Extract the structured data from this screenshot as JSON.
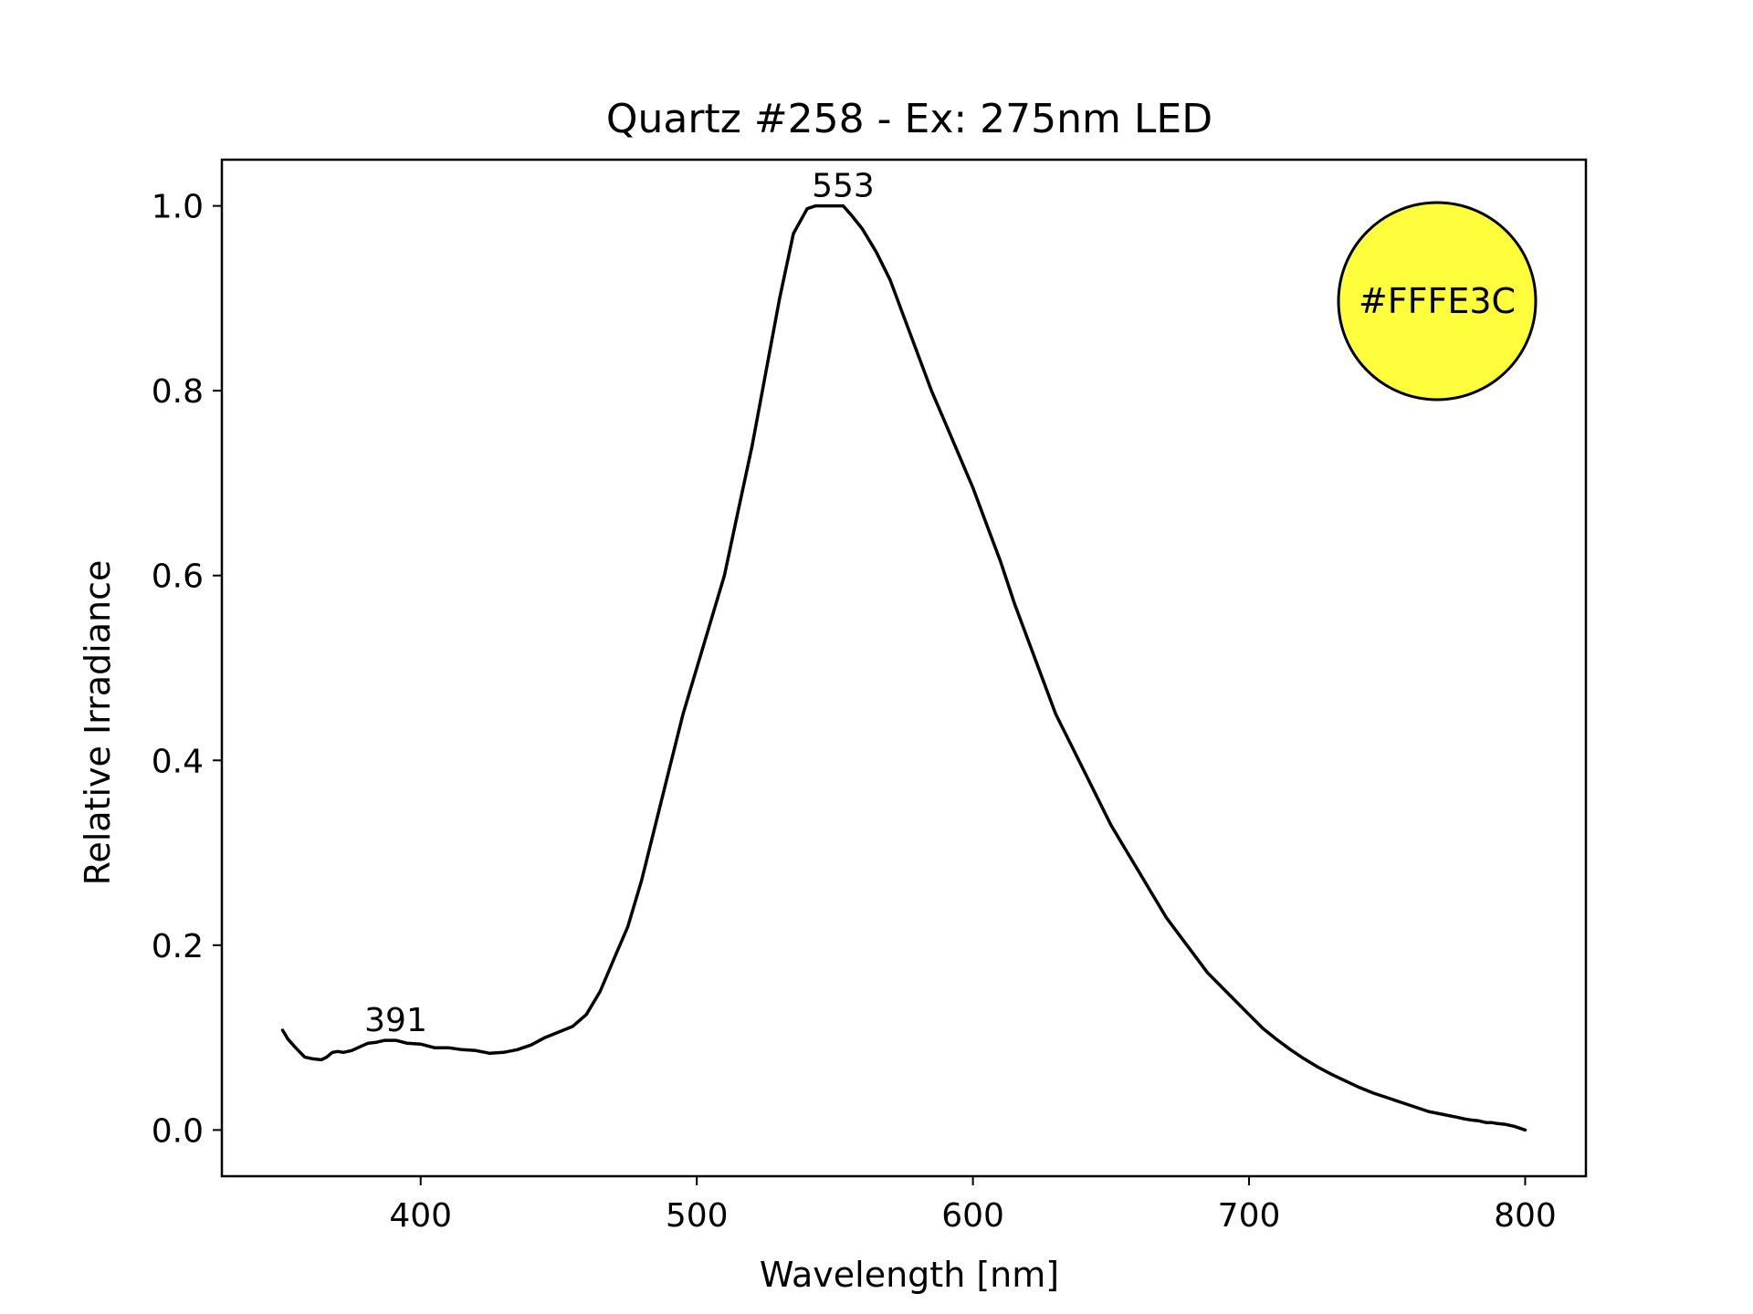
{
  "chart_data": {
    "type": "line",
    "title": "Quartz #258 - Ex: 275nm LED",
    "xlabel": "Wavelength [nm]",
    "ylabel": "Relative Irradiance",
    "xlim": [
      328,
      822
    ],
    "ylim": [
      -0.05,
      1.05
    ],
    "xticks": [
      400,
      500,
      600,
      700,
      800
    ],
    "yticks": [
      0.0,
      0.2,
      0.4,
      0.6,
      0.8,
      1.0
    ],
    "ytick_labels": [
      "0.0",
      "0.2",
      "0.4",
      "0.6",
      "0.8",
      "1.0"
    ],
    "grid": false,
    "line_color": "#000000",
    "series": [
      {
        "x": [
          350,
          352,
          355,
          358,
          361,
          364,
          366,
          368,
          370,
          372,
          375,
          378,
          381,
          384,
          387,
          391,
          395,
          400,
          405,
          410,
          415,
          420,
          425,
          430,
          435,
          440,
          445,
          450,
          455,
          460,
          465,
          470,
          475,
          480,
          485,
          490,
          495,
          500,
          505,
          510,
          515,
          520,
          525,
          530,
          535,
          540,
          543,
          546,
          549,
          553,
          556,
          560,
          565,
          570,
          575,
          580,
          585,
          590,
          595,
          600,
          605,
          610,
          615,
          620,
          625,
          630,
          635,
          640,
          645,
          650,
          655,
          660,
          665,
          670,
          675,
          680,
          685,
          690,
          695,
          700,
          705,
          710,
          715,
          720,
          725,
          730,
          735,
          740,
          745,
          750,
          755,
          760,
          765,
          770,
          775,
          778,
          780,
          783,
          786,
          788,
          790,
          793,
          796,
          800
        ],
        "y": [
          0.108,
          0.098,
          0.088,
          0.079,
          0.077,
          0.076,
          0.079,
          0.084,
          0.085,
          0.084,
          0.086,
          0.09,
          0.094,
          0.095,
          0.097,
          0.097,
          0.094,
          0.093,
          0.089,
          0.089,
          0.087,
          0.086,
          0.083,
          0.084,
          0.087,
          0.092,
          0.1,
          0.106,
          0.112,
          0.125,
          0.15,
          0.185,
          0.22,
          0.27,
          0.33,
          0.39,
          0.45,
          0.5,
          0.55,
          0.6,
          0.67,
          0.74,
          0.82,
          0.9,
          0.97,
          0.997,
          1.0,
          1.0,
          1.0,
          1.0,
          0.99,
          0.975,
          0.95,
          0.92,
          0.88,
          0.84,
          0.8,
          0.765,
          0.73,
          0.695,
          0.655,
          0.615,
          0.57,
          0.53,
          0.49,
          0.45,
          0.42,
          0.39,
          0.36,
          0.33,
          0.305,
          0.28,
          0.255,
          0.23,
          0.21,
          0.19,
          0.17,
          0.155,
          0.14,
          0.125,
          0.11,
          0.098,
          0.087,
          0.077,
          0.068,
          0.06,
          0.053,
          0.046,
          0.04,
          0.035,
          0.03,
          0.025,
          0.02,
          0.017,
          0.014,
          0.012,
          0.011,
          0.01,
          0.008,
          0.008,
          0.007,
          0.006,
          0.004,
          0.0
        ]
      }
    ],
    "annotations": [
      {
        "text": "391",
        "x": 391,
        "y": 0.097
      },
      {
        "text": "553",
        "x": 553,
        "y": 1.0
      }
    ],
    "color_swatch": {
      "label": "#FFFE3C",
      "color": "#FFFE3C"
    }
  }
}
